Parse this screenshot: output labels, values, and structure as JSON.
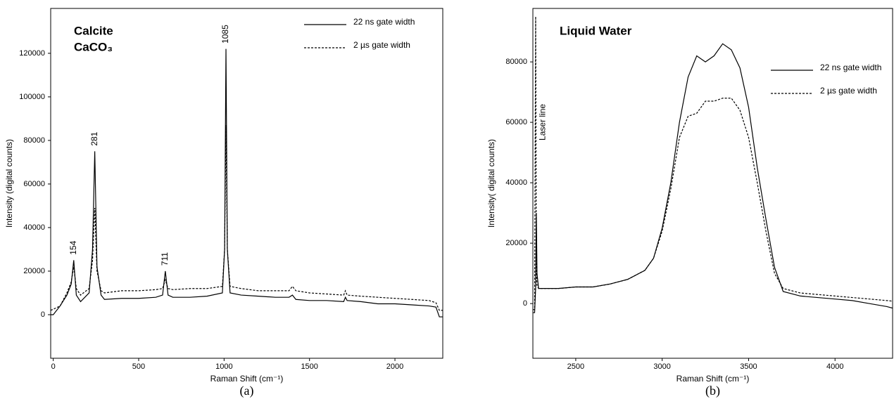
{
  "chart_data": [
    {
      "type": "line",
      "title": "Calcite",
      "subtitle": "CaCO₃",
      "caption": "(a)",
      "xlabel": "Raman Shift (cm⁻¹)",
      "ylabel": "Intensity (digital counts)",
      "xlim": [
        -15,
        2280
      ],
      "ylim": [
        -20000,
        140600
      ],
      "xticks": [
        0,
        500,
        1000,
        1500,
        2000
      ],
      "yticks": [
        0,
        20000,
        40000,
        60000,
        80000,
        100000,
        120000
      ],
      "legend": "upper right",
      "x": [
        -15,
        0,
        40,
        80,
        105,
        120,
        135,
        160,
        210,
        230,
        243,
        256,
        280,
        300,
        400,
        500,
        600,
        640,
        656,
        672,
        700,
        800,
        900,
        990,
        1003,
        1011,
        1019,
        1035,
        1100,
        1200,
        1300,
        1380,
        1400,
        1420,
        1500,
        1600,
        1700,
        1710,
        1720,
        1800,
        1900,
        2000,
        2100,
        2200,
        2240,
        2260,
        2280
      ],
      "series": [
        {
          "name": "22 ns gate width",
          "color": "#000000",
          "dash": "solid",
          "values": [
            0,
            0,
            4000,
            9000,
            14000,
            25000,
            9000,
            6000,
            10000,
            30000,
            75000,
            22000,
            9000,
            7000,
            7500,
            7500,
            8000,
            9000,
            20000,
            9000,
            8000,
            8000,
            8500,
            10000,
            30000,
            122000,
            30000,
            10000,
            9000,
            8500,
            8000,
            8000,
            9000,
            7000,
            6500,
            6500,
            6000,
            8000,
            6500,
            6000,
            5000,
            5000,
            4500,
            4000,
            3500,
            -1000,
            -1000
          ]
        },
        {
          "name": "2 µs gate width",
          "color": "#000000",
          "dash": "dashed",
          "values": [
            2000,
            2500,
            4000,
            10000,
            15000,
            22000,
            12000,
            9000,
            12000,
            25000,
            49000,
            20000,
            11000,
            10000,
            11000,
            11000,
            11500,
            12000,
            16000,
            12000,
            11500,
            12000,
            12000,
            13000,
            30000,
            87000,
            30000,
            13000,
            12000,
            11000,
            11000,
            11000,
            13000,
            11000,
            10000,
            9500,
            9000,
            11000,
            9000,
            8500,
            8000,
            7500,
            7000,
            6500,
            5500,
            2000,
            2000
          ]
        }
      ],
      "annotations": [
        {
          "text": "154",
          "x": 120,
          "y": 27500
        },
        {
          "text": "281",
          "x": 243,
          "y": 77500
        },
        {
          "text": "711",
          "x": 656,
          "y": 22500
        },
        {
          "text": "1085",
          "x": 1011,
          "y": 124500
        }
      ]
    },
    {
      "type": "line",
      "title": "Liquid Water",
      "caption": "(b)",
      "xlabel": "Raman Shift (cm⁻¹)",
      "ylabel": "Intensity( digital counts)",
      "xlim": [
        2252,
        4333
      ],
      "ylim": [
        -18100,
        97700
      ],
      "xticks": [
        2500,
        3000,
        3500,
        4000
      ],
      "yticks": [
        0,
        20000,
        40000,
        60000,
        80000
      ],
      "legend": "upper right",
      "x": [
        2252,
        2262,
        2268,
        2272,
        2276,
        2285,
        2300,
        2400,
        2500,
        2600,
        2700,
        2800,
        2900,
        2950,
        3000,
        3050,
        3100,
        3150,
        3200,
        3250,
        3300,
        3350,
        3400,
        3450,
        3500,
        3550,
        3600,
        3650,
        3700,
        3800,
        3900,
        4000,
        4100,
        4200,
        4300,
        4333
      ],
      "series": [
        {
          "name": "22 ns gate width",
          "color": "#000000",
          "dash": "solid",
          "values": [
            -3000,
            -3000,
            5000,
            30000,
            10000,
            5000,
            5000,
            5000,
            5500,
            5500,
            6500,
            8000,
            11000,
            15000,
            25000,
            40000,
            60000,
            75000,
            82000,
            80000,
            82000,
            86000,
            84000,
            78000,
            65000,
            45000,
            28000,
            12000,
            4000,
            2500,
            2000,
            1500,
            1000,
            0,
            -1000,
            -1500
          ]
        },
        {
          "name": "2 µs gate width",
          "color": "#000000",
          "dash": "dashed",
          "values": [
            -2000,
            -2000,
            95000,
            10000,
            6000,
            5000,
            5000,
            5000,
            5500,
            5500,
            6500,
            8000,
            11000,
            15000,
            24000,
            38000,
            55000,
            62000,
            63000,
            67000,
            67000,
            68000,
            68000,
            64000,
            55000,
            40000,
            24000,
            10000,
            5000,
            3500,
            3000,
            2500,
            2000,
            1500,
            1000,
            800
          ]
        }
      ],
      "annotations": [
        {
          "text": "Laser line",
          "x": 2310,
          "y": 54000
        }
      ]
    }
  ]
}
